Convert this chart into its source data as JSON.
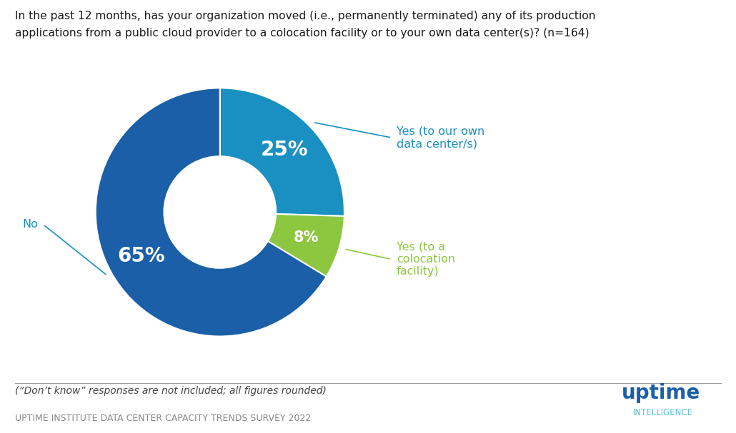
{
  "title_line1": "In the past 12 months, has your organization moved (i.e., permanently terminated) any of its production",
  "title_line2": "applications from a public cloud provider to a colocation facility or to your own data center(s)? (n=164)",
  "slices": [
    25,
    8,
    65
  ],
  "pct_labels": [
    "25%",
    "8%",
    "65%"
  ],
  "colors": [
    "#1a8fc1",
    "#8dc63f",
    "#1a5fa8"
  ],
  "label_25": "Yes (to our own\ndata center/s)",
  "label_8": "Yes (to a\ncolocation\nfacility)",
  "label_65": "No",
  "footnote": "(“Don’t know” responses are not included; all figures rounded)",
  "survey_text": "UPTIME INSTITUTE DATA CENTER CAPACITY TRENDS SURVEY 2022",
  "uptime_text": "uptime",
  "intelligence_text": "INTELLIGENCE",
  "uptime_color": "#1a5fa8",
  "intelligence_color": "#5abcd8",
  "line_color": "#1a8fc1",
  "green_label_color": "#8dc63f",
  "background_color": "#ffffff"
}
